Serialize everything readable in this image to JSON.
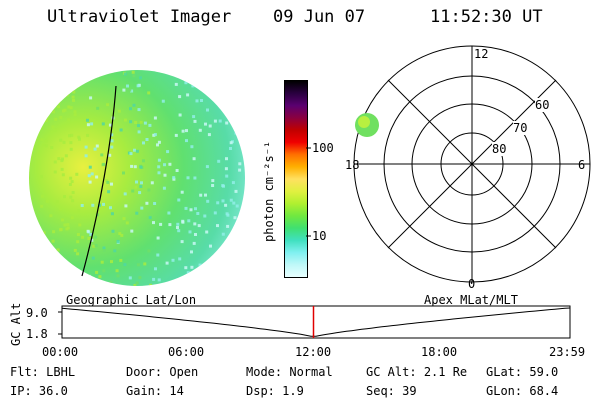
{
  "header": {
    "instrument": "Ultraviolet Imager",
    "date": "09 Jun 07",
    "time": "11:52:30 UT"
  },
  "colorbar": {
    "unit_label": "photon cm⁻²s⁻¹",
    "ticks": [
      "100",
      "10"
    ],
    "colors": [
      "#000000",
      "#2a0040",
      "#5a0070",
      "#8a0040",
      "#c00000",
      "#f00000",
      "#ff7000",
      "#ffb000",
      "#ffe060",
      "#e0f040",
      "#b0f030",
      "#70e840",
      "#40e070",
      "#40e0c0",
      "#80f0f0",
      "#c0f8f8",
      "#e8ffff"
    ]
  },
  "polar_plot": {
    "lat_labels": [
      "60",
      "70",
      "80"
    ],
    "mlt_labels": {
      "top": "12",
      "left": "18",
      "right": "6",
      "bottom": "0"
    }
  },
  "timeline": {
    "ylabel": "GC Alt",
    "y_ticks": [
      "9.0",
      "1.8"
    ],
    "left_caption": "Geographic Lat/Lon",
    "right_caption": "Apex MLat/MLT",
    "x_ticks": [
      "00:00",
      "06:00",
      "12:00",
      "18:00",
      "23:59"
    ],
    "current_time_marker": "11:52:30"
  },
  "status": {
    "row1": [
      {
        "label": "Flt:",
        "value": "LBHL"
      },
      {
        "label": "Door:",
        "value": "Open"
      },
      {
        "label": "Mode:",
        "value": "Normal"
      },
      {
        "label": "GC Alt:",
        "value": "2.1 Re"
      },
      {
        "label": "GLat:",
        "value": "59.0"
      }
    ],
    "row2": [
      {
        "label": "IP:",
        "value": "36.0"
      },
      {
        "label": "Gain:",
        "value": "14"
      },
      {
        "label": "Dsp:",
        "value": "1.9"
      },
      {
        "label": "Seq:",
        "value": "39"
      },
      {
        "label": "GLon:",
        "value": "68.4"
      }
    ]
  }
}
